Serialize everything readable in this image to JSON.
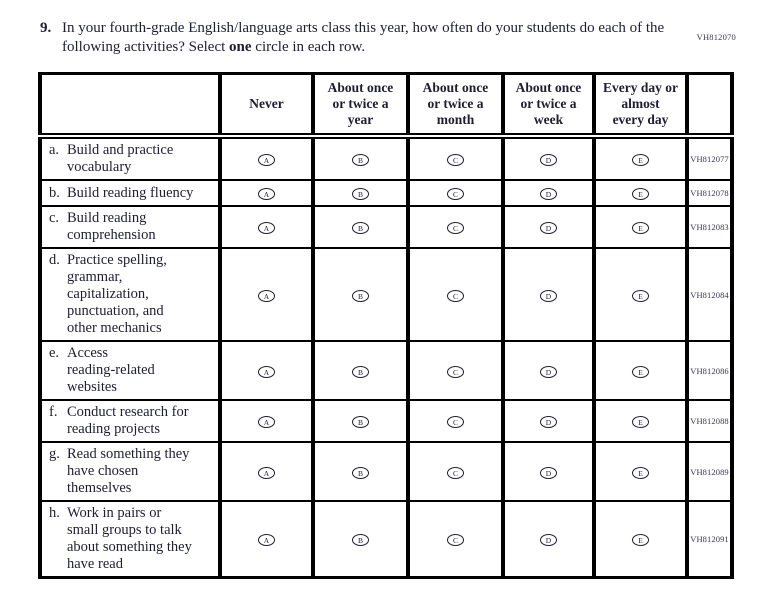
{
  "page": {
    "form_code": "VH812070"
  },
  "question": {
    "number": "9.",
    "text_part1": "In your fourth-grade English/language arts class this year, how often do your students do each of the following activities? Select ",
    "text_bold": "one",
    "text_part2": " circle in each row."
  },
  "table": {
    "columns": [
      "",
      "Never",
      "About once\nor twice a\nyear",
      "About once\nor twice a\nmonth",
      "About once\nor twice a\nweek",
      "Every day or\nalmost\nevery day",
      ""
    ],
    "options": [
      "A",
      "B",
      "C",
      "D",
      "E"
    ],
    "rows": [
      {
        "letter": "a.",
        "label": "Build and practice\nvocabulary",
        "code": "VH812077"
      },
      {
        "letter": "b.",
        "label": "Build reading fluency",
        "code": "VH812078"
      },
      {
        "letter": "c.",
        "label": "Build reading\ncomprehension",
        "code": "VH812083"
      },
      {
        "letter": "d.",
        "label": "Practice spelling,\ngrammar,\ncapitalization,\npunctuation, and\nother mechanics",
        "code": "VH812084"
      },
      {
        "letter": "e.",
        "label": "Access\nreading-related\nwebsites",
        "code": "VH812086"
      },
      {
        "letter": "f.",
        "label": "Conduct research for\nreading projects",
        "code": "VH812088"
      },
      {
        "letter": "g.",
        "label": "Read something they\nhave chosen\nthemselves",
        "code": "VH812089"
      },
      {
        "letter": "h.",
        "label": "Work in pairs or\nsmall groups to talk\nabout something they\nhave read",
        "code": "VH812091"
      }
    ]
  },
  "colors": {
    "text": "#1e1e30",
    "code_text": "#38384f",
    "border": "#000000",
    "background": "#ffffff"
  }
}
